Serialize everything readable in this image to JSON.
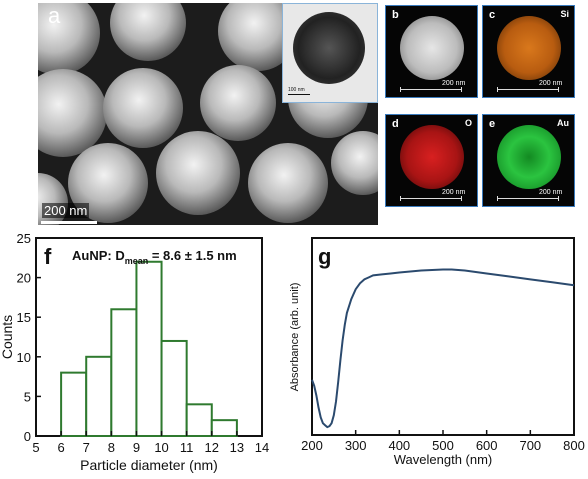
{
  "panel_a": {
    "letter": "a",
    "scale_label": "200 nm",
    "inset_scale_label": "100 nm"
  },
  "maps": [
    {
      "letter": "b",
      "element": "",
      "scale_label": "200 nm",
      "color": "#c8c8c8"
    },
    {
      "letter": "c",
      "element": "Si",
      "scale_label": "200 nm",
      "color": "#c96a14"
    },
    {
      "letter": "d",
      "element": "O",
      "scale_label": "200 nm",
      "color": "#c01818"
    },
    {
      "letter": "e",
      "element": "Au",
      "scale_label": "200 nm",
      "color": "#25b83a"
    }
  ],
  "chart_data": [
    {
      "type": "bar",
      "panel_letter": "f",
      "annotation_prefix": "AuNP: D",
      "annotation_sub": "mean",
      "annotation_suffix": " = 8.6 ± 1.5 nm",
      "xlabel": "Particle diameter (nm)",
      "ylabel": "Counts",
      "bin_edges": [
        6,
        7,
        8,
        9,
        10,
        11,
        12,
        13
      ],
      "values": [
        8,
        10,
        16,
        22,
        12,
        4,
        2
      ],
      "xlim": [
        5,
        14
      ],
      "ylim": [
        0,
        25
      ],
      "xticks": [
        "5",
        "6",
        "7",
        "8",
        "9",
        "10",
        "11",
        "12",
        "13",
        "14"
      ],
      "yticks": [
        "0",
        "5",
        "10",
        "15",
        "20",
        "25"
      ],
      "bar_edge_color": "#2f7a2f",
      "grid": false
    },
    {
      "type": "line",
      "panel_letter": "g",
      "xlabel": "Wavelength (nm)",
      "ylabel": "Absorbance (arb. unit)",
      "xlim": [
        200,
        800
      ],
      "xticks": [
        "200",
        "300",
        "400",
        "500",
        "600",
        "700",
        "800"
      ],
      "ylim": [
        0,
        1
      ],
      "y_ticks_shown": false,
      "line_color": "#2b4a6e",
      "grid": false,
      "series": [
        {
          "x": [
            200,
            205,
            210,
            215,
            220,
            225,
            230,
            235,
            240,
            245,
            250,
            255,
            260,
            265,
            270,
            275,
            280,
            290,
            300,
            310,
            320,
            330,
            340,
            360,
            380,
            400,
            450,
            500,
            520,
            550,
            600,
            650,
            700,
            750,
            800
          ],
          "y": [
            0.28,
            0.25,
            0.2,
            0.14,
            0.09,
            0.06,
            0.05,
            0.04,
            0.045,
            0.06,
            0.1,
            0.17,
            0.27,
            0.38,
            0.48,
            0.56,
            0.62,
            0.69,
            0.74,
            0.77,
            0.79,
            0.8,
            0.81,
            0.815,
            0.82,
            0.825,
            0.835,
            0.84,
            0.84,
            0.835,
            0.82,
            0.805,
            0.79,
            0.775,
            0.76
          ]
        }
      ]
    }
  ]
}
